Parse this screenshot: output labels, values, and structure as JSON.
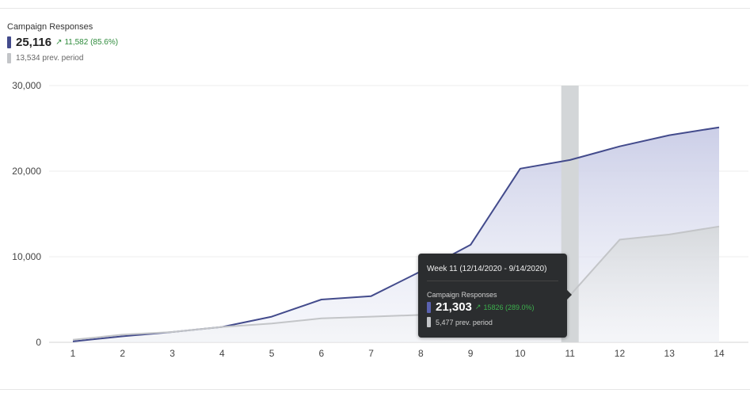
{
  "summary": {
    "title": "Campaign Responses",
    "value": "25,116",
    "delta_arrow": "↗",
    "delta": "11,582 (85.6%)",
    "prev": "13,534 prev. period"
  },
  "tooltip": {
    "header": "Week 11 (12/14/2020 - 9/14/2020)",
    "metric": "Campaign Responses",
    "value": "21,303",
    "delta_arrow": "↗",
    "delta": "15826 (289.0%)",
    "prev": "5,477 prev. period"
  },
  "colors": {
    "current": "#434b8c",
    "previous": "#c3c5c8",
    "highlight": "#d3d6d8",
    "delta_up": "#2e8b3c"
  },
  "chart_data": {
    "type": "area",
    "x": [
      1,
      2,
      3,
      4,
      5,
      6,
      7,
      8,
      9,
      10,
      11,
      12,
      13,
      14
    ],
    "ylim": [
      0,
      30000
    ],
    "yticks": [
      0,
      10000,
      20000,
      30000
    ],
    "ytick_labels": [
      "0",
      "10,000",
      "20,000",
      "30,000"
    ],
    "grid": true,
    "highlight_x": 11,
    "series": [
      {
        "key": "current",
        "values": [
          100,
          700,
          1200,
          1800,
          3000,
          5000,
          5400,
          8300,
          11400,
          20300,
          21303,
          22900,
          24200,
          25116
        ]
      },
      {
        "key": "previous",
        "values": [
          300,
          900,
          1200,
          1800,
          2200,
          2800,
          3000,
          3200,
          3600,
          4200,
          5477,
          12000,
          12600,
          13534
        ]
      }
    ]
  }
}
